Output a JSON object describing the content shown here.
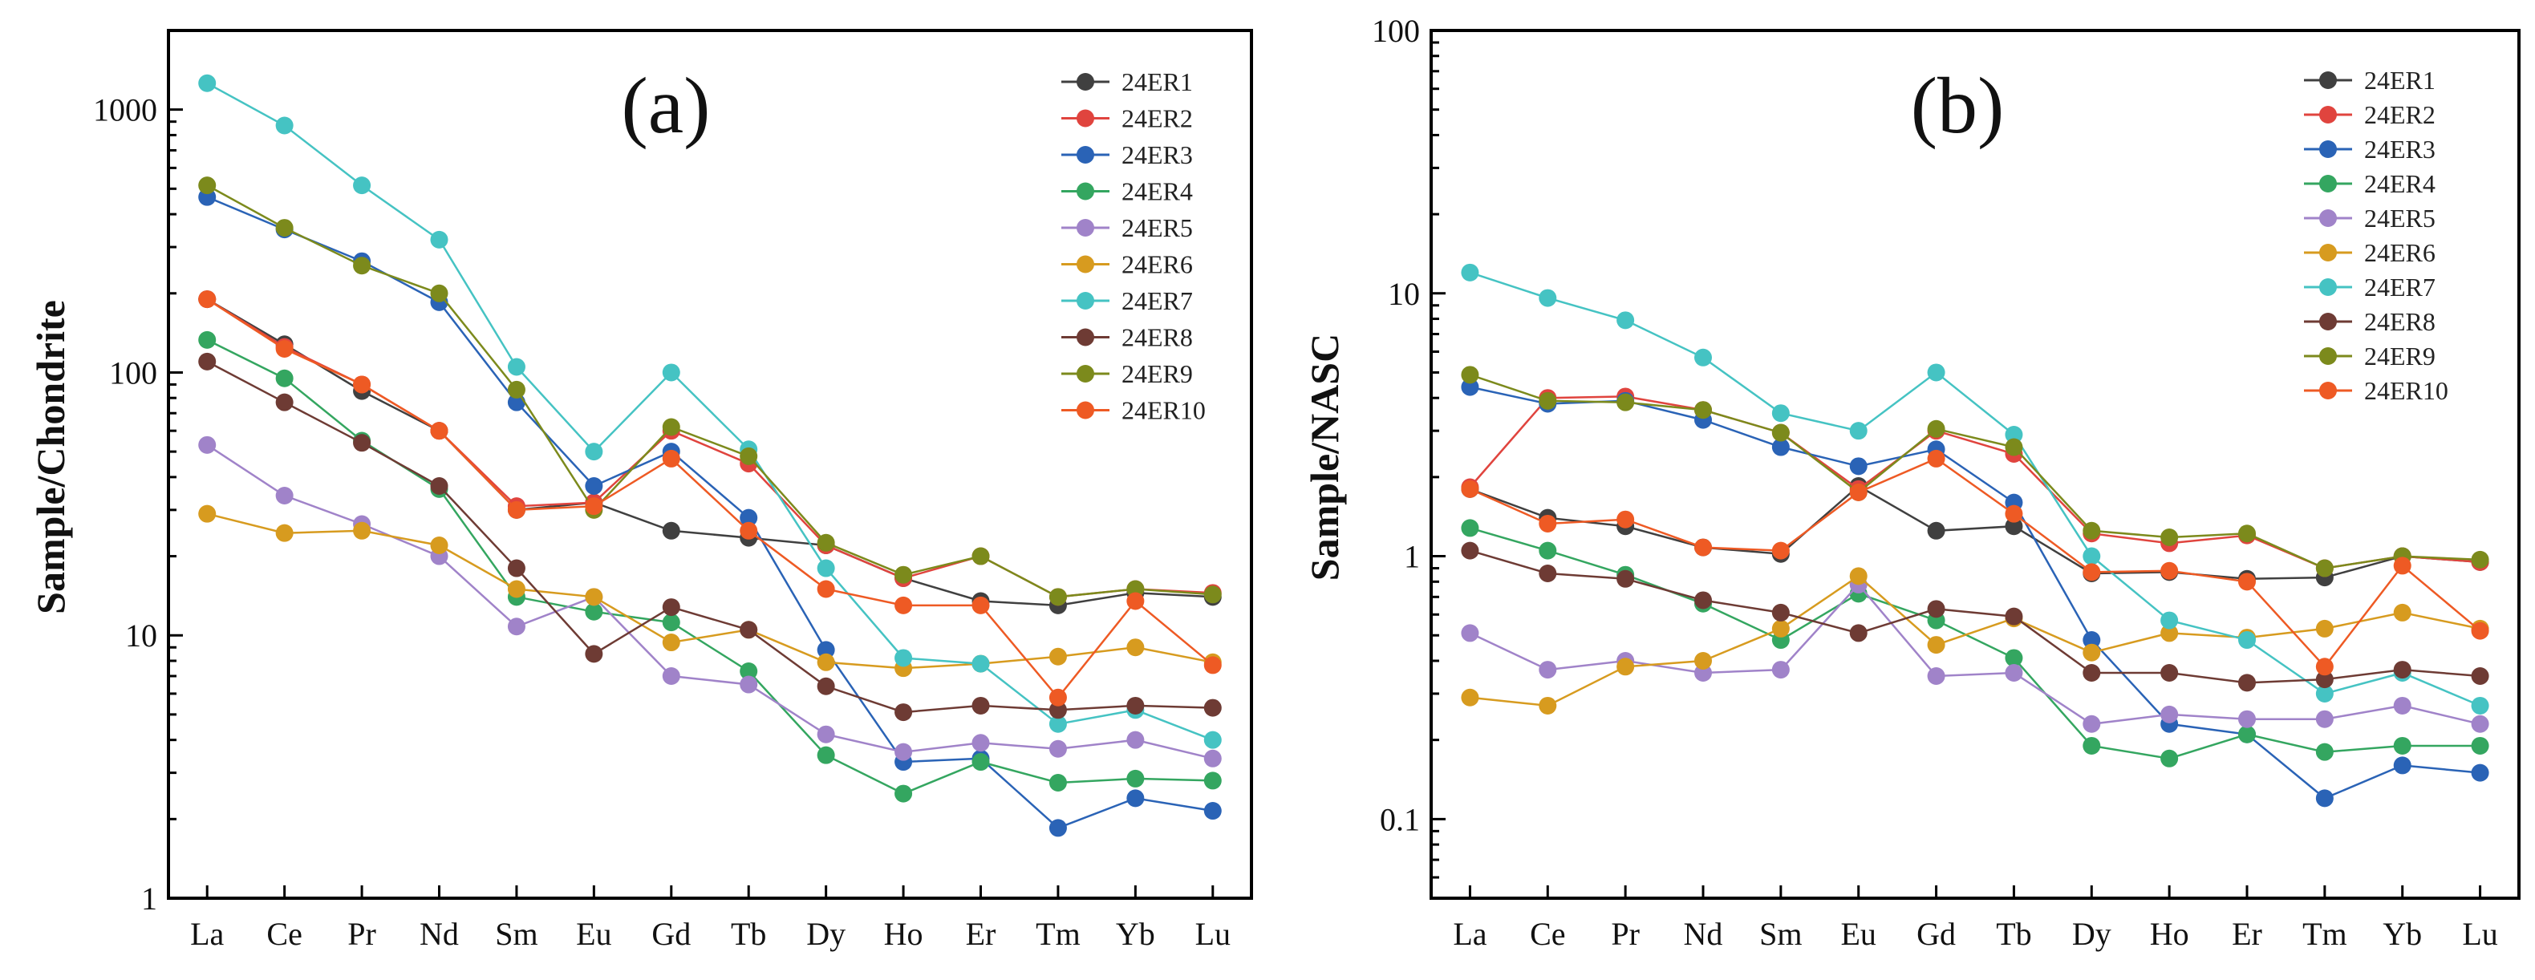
{
  "chart_data": [
    {
      "type": "line",
      "panel_title": "(a)",
      "xlabel": "",
      "ylabel": "Sample/Chondrite",
      "yscale": "log",
      "ylim": [
        1,
        2000
      ],
      "yticks": [
        1,
        10,
        100,
        1000
      ],
      "yticklabels": [
        "1",
        "10",
        "100",
        "1000"
      ],
      "categories": [
        "La",
        "Ce",
        "Pr",
        "Nd",
        "Sm",
        "Eu",
        "Gd",
        "Tb",
        "Dy",
        "Ho",
        "Er",
        "Tm",
        "Yb",
        "Lu"
      ],
      "legend_position": "top-right",
      "grid": false,
      "series": [
        {
          "name": "24ER1",
          "color": "#404040",
          "values": [
            190,
            128,
            85,
            60,
            30,
            32,
            25,
            23.5,
            22,
            16.5,
            13.5,
            13,
            14.5,
            14
          ]
        },
        {
          "name": "24ER2",
          "color": "#e0443e",
          "values": [
            190,
            125,
            90,
            60,
            31,
            32,
            60,
            45,
            22,
            16.5,
            20,
            14,
            15,
            14.5
          ]
        },
        {
          "name": "24ER3",
          "color": "#2a63b6",
          "values": [
            465,
            350,
            265,
            185,
            77,
            37,
            50,
            28,
            8.8,
            3.3,
            3.4,
            1.85,
            2.4,
            2.15
          ]
        },
        {
          "name": "24ER4",
          "color": "#34a660",
          "values": [
            133,
            95,
            55,
            36,
            14,
            12.3,
            11.2,
            7.3,
            3.5,
            2.5,
            3.3,
            2.75,
            2.85,
            2.8
          ]
        },
        {
          "name": "24ER5",
          "color": "#a083c9",
          "values": [
            53,
            34,
            26.5,
            20,
            10.8,
            14,
            7,
            6.5,
            4.2,
            3.6,
            3.9,
            3.7,
            4,
            3.4
          ]
        },
        {
          "name": "24ER6",
          "color": "#d79b1f",
          "values": [
            29,
            24.5,
            25,
            22,
            15,
            14,
            9.4,
            10.5,
            7.9,
            7.5,
            7.8,
            8.3,
            9,
            7.9
          ]
        },
        {
          "name": "24ER7",
          "color": "#45c3c3",
          "values": [
            1260,
            870,
            515,
            320,
            105,
            50,
            100,
            51,
            18,
            8.2,
            7.8,
            4.6,
            5.2,
            4
          ]
        },
        {
          "name": "24ER8",
          "color": "#6e3b34",
          "values": [
            110,
            77,
            54,
            37,
            18,
            8.5,
            12.8,
            10.5,
            6.4,
            5.1,
            5.4,
            5.2,
            5.4,
            5.3
          ]
        },
        {
          "name": "24ER9",
          "color": "#7c8a1c",
          "values": [
            515,
            355,
            255,
            200,
            86,
            30,
            62,
            48,
            22.5,
            17,
            20,
            14,
            15,
            14.3
          ]
        },
        {
          "name": "24ER10",
          "color": "#ee5a24",
          "values": [
            190,
            123,
            90,
            60,
            30,
            31,
            47,
            25,
            15,
            13,
            13,
            5.8,
            13.5,
            7.7
          ]
        }
      ]
    },
    {
      "type": "line",
      "panel_title": "(b)",
      "xlabel": "",
      "ylabel": "Sample/NASC",
      "yscale": "log",
      "ylim": [
        0.05,
        100
      ],
      "yticks": [
        0.1,
        1,
        10,
        100
      ],
      "yticklabels": [
        "0.1",
        "1",
        "10",
        "100"
      ],
      "categories": [
        "La",
        "Ce",
        "Pr",
        "Nd",
        "Sm",
        "Eu",
        "Gd",
        "Tb",
        "Dy",
        "Ho",
        "Er",
        "Tm",
        "Yb",
        "Lu"
      ],
      "legend_position": "top-right",
      "grid": false,
      "series": [
        {
          "name": "24ER1",
          "color": "#404040",
          "values": [
            1.8,
            1.4,
            1.3,
            1.08,
            1.02,
            1.85,
            1.25,
            1.3,
            0.86,
            0.87,
            0.82,
            0.83,
            1.0,
            0.95
          ]
        },
        {
          "name": "24ER2",
          "color": "#e0443e",
          "values": [
            1.83,
            4.0,
            4.05,
            3.6,
            2.95,
            1.8,
            3.0,
            2.45,
            1.22,
            1.12,
            1.2,
            0.9,
            1.0,
            0.95
          ]
        },
        {
          "name": "24ER3",
          "color": "#2a63b6",
          "values": [
            4.4,
            3.8,
            3.9,
            3.3,
            2.6,
            2.2,
            2.55,
            1.6,
            0.48,
            0.23,
            0.21,
            0.12,
            0.16,
            0.15
          ]
        },
        {
          "name": "24ER4",
          "color": "#34a660",
          "values": [
            1.28,
            1.05,
            0.85,
            0.66,
            0.48,
            0.72,
            0.57,
            0.41,
            0.19,
            0.17,
            0.21,
            0.18,
            0.19,
            0.19
          ]
        },
        {
          "name": "24ER5",
          "color": "#a083c9",
          "values": [
            0.51,
            0.37,
            0.4,
            0.36,
            0.37,
            0.78,
            0.35,
            0.36,
            0.23,
            0.25,
            0.24,
            0.24,
            0.27,
            0.23
          ]
        },
        {
          "name": "24ER6",
          "color": "#d79b1f",
          "values": [
            0.29,
            0.27,
            0.38,
            0.4,
            0.53,
            0.84,
            0.46,
            0.58,
            0.43,
            0.51,
            0.49,
            0.53,
            0.61,
            0.53
          ]
        },
        {
          "name": "24ER7",
          "color": "#45c3c3",
          "values": [
            12,
            9.6,
            7.9,
            5.7,
            3.5,
            3.0,
            5.0,
            2.9,
            1.0,
            0.57,
            0.48,
            0.3,
            0.36,
            0.27
          ]
        },
        {
          "name": "24ER8",
          "color": "#6e3b34",
          "values": [
            1.05,
            0.86,
            0.82,
            0.68,
            0.61,
            0.51,
            0.63,
            0.59,
            0.36,
            0.36,
            0.33,
            0.34,
            0.37,
            0.35
          ]
        },
        {
          "name": "24ER9",
          "color": "#7c8a1c",
          "values": [
            4.9,
            3.9,
            3.85,
            3.6,
            2.95,
            1.75,
            3.05,
            2.6,
            1.25,
            1.18,
            1.22,
            0.9,
            1.0,
            0.97
          ]
        },
        {
          "name": "24ER10",
          "color": "#ee5a24",
          "values": [
            1.8,
            1.33,
            1.38,
            1.08,
            1.05,
            1.75,
            2.35,
            1.45,
            0.87,
            0.88,
            0.8,
            0.38,
            0.92,
            0.52
          ]
        }
      ]
    }
  ]
}
